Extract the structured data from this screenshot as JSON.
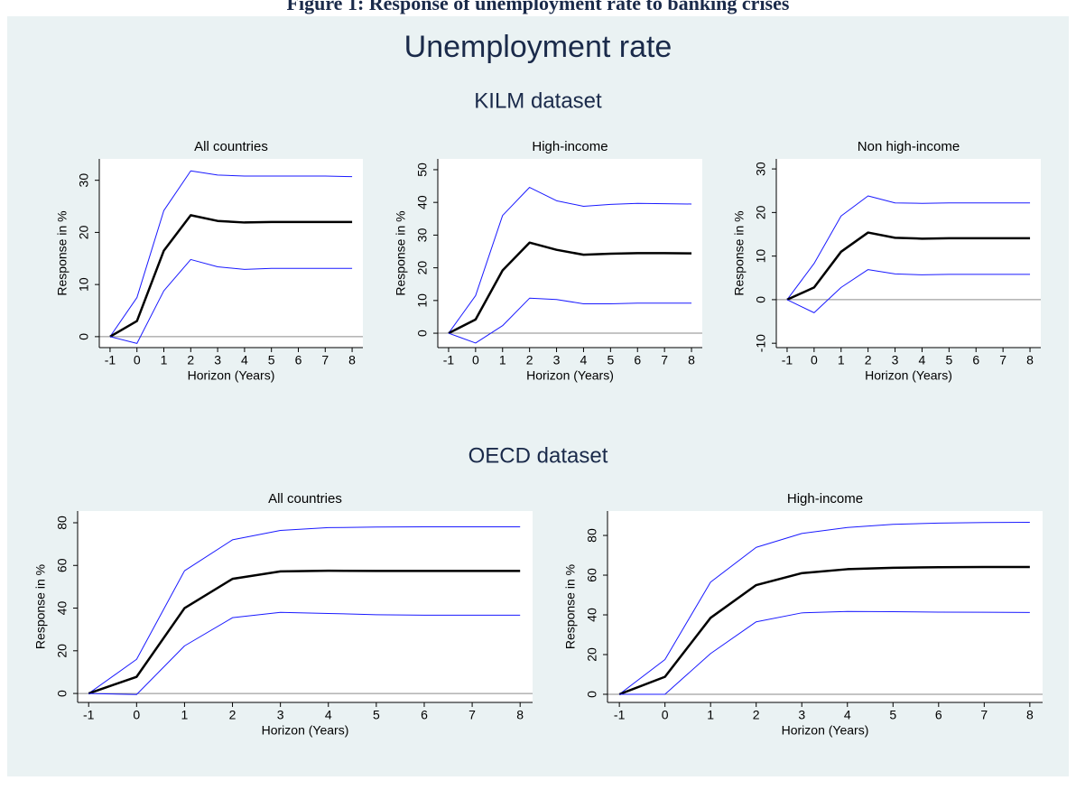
{
  "caption": "Figure 1: Response of unemployment rate to banking crises",
  "title": "Unemployment rate",
  "groups": [
    "KILM dataset",
    "OECD dataset"
  ],
  "chart_data": [
    {
      "type": "line",
      "group": 0,
      "title": "All countries",
      "xlabel": "Horizon (Years)",
      "ylabel": "Response in %",
      "x": [
        -1,
        0,
        1,
        2,
        3,
        4,
        5,
        6,
        7,
        8
      ],
      "xlim": [
        -1.4,
        8.4
      ],
      "xticks": [
        -1,
        0,
        1,
        2,
        3,
        4,
        5,
        6,
        7,
        8
      ],
      "ylim": [
        -2.1,
        34.1
      ],
      "yticks": [
        0,
        10,
        20,
        30
      ],
      "refline": 0,
      "series": [
        {
          "color": "#1a1aff",
          "values": [
            0,
            7.5,
            24.2,
            31.8,
            31,
            30.8,
            30.8,
            30.8,
            30.8,
            30.7
          ]
        },
        {
          "color": "#000000",
          "values": [
            0,
            3,
            16.5,
            23.3,
            22.2,
            21.9,
            22,
            22,
            22,
            22
          ]
        },
        {
          "color": "#1a1aff",
          "values": [
            0,
            -1.3,
            8.8,
            14.8,
            13.4,
            12.9,
            13.1,
            13.1,
            13.1,
            13.1
          ]
        }
      ]
    },
    {
      "type": "line",
      "group": 0,
      "title": "High-income",
      "xlabel": "Horizon (Years)",
      "ylabel": "Response in %",
      "x": [
        -1,
        0,
        1,
        2,
        3,
        4,
        5,
        6,
        7,
        8
      ],
      "xlim": [
        -1.4,
        8.4
      ],
      "xticks": [
        -1,
        0,
        1,
        2,
        3,
        4,
        5,
        6,
        7,
        8
      ],
      "ylim": [
        -4.4,
        53.3
      ],
      "yticks": [
        0,
        10,
        20,
        30,
        40,
        50
      ],
      "refline": 0,
      "series": [
        {
          "color": "#1a1aff",
          "values": [
            0,
            11.5,
            36,
            44.6,
            40.5,
            38.8,
            39.4,
            39.7,
            39.6,
            39.5
          ]
        },
        {
          "color": "#000000",
          "values": [
            0,
            4.2,
            19.2,
            27.7,
            25.5,
            24,
            24.3,
            24.5,
            24.5,
            24.4
          ]
        },
        {
          "color": "#1a1aff",
          "values": [
            0,
            -3,
            2.3,
            10.7,
            10.3,
            9,
            9,
            9.2,
            9.2,
            9.2
          ]
        }
      ]
    },
    {
      "type": "line",
      "group": 0,
      "title": "Non high-income",
      "xlabel": "Horizon (Years)",
      "ylabel": "Response in %",
      "x": [
        -1,
        0,
        1,
        2,
        3,
        4,
        5,
        6,
        7,
        8
      ],
      "xlim": [
        -1.4,
        8.4
      ],
      "xticks": [
        -1,
        0,
        1,
        2,
        3,
        4,
        5,
        6,
        7,
        8
      ],
      "ylim": [
        -11,
        32.3
      ],
      "yticks": [
        -10,
        0,
        10,
        20,
        30
      ],
      "refline": 0,
      "series": [
        {
          "color": "#1a1aff",
          "values": [
            0,
            8.3,
            19.2,
            23.8,
            22.2,
            22.1,
            22.2,
            22.2,
            22.2,
            22.2
          ]
        },
        {
          "color": "#000000",
          "values": [
            0,
            2.8,
            11,
            15.4,
            14.2,
            14,
            14.1,
            14.1,
            14.1,
            14.1
          ]
        },
        {
          "color": "#1a1aff",
          "values": [
            0,
            -3,
            2.8,
            6.9,
            5.9,
            5.7,
            5.8,
            5.8,
            5.8,
            5.8
          ]
        }
      ]
    },
    {
      "type": "line",
      "group": 1,
      "title": "All countries",
      "xlabel": "Horizon (Years)",
      "ylabel": "Response in %",
      "x": [
        -1,
        0,
        1,
        2,
        3,
        4,
        5,
        6,
        7,
        8
      ],
      "xlim": [
        -1.23,
        8.26
      ],
      "xticks": [
        -1,
        0,
        1,
        2,
        3,
        4,
        5,
        6,
        7,
        8
      ],
      "ylim": [
        -4.2,
        85.5
      ],
      "yticks": [
        0,
        20,
        40,
        60,
        80
      ],
      "refline": 0,
      "series": [
        {
          "color": "#1a1aff",
          "values": [
            0,
            16,
            57.5,
            72,
            76.4,
            77.7,
            78,
            78.1,
            78.1,
            78.1
          ]
        },
        {
          "color": "#000000",
          "values": [
            0,
            7.8,
            40,
            53.7,
            57.2,
            57.5,
            57.4,
            57.4,
            57.4,
            57.4
          ]
        },
        {
          "color": "#1a1aff",
          "values": [
            0,
            -0.5,
            22.3,
            35.5,
            38,
            37.5,
            36.9,
            36.7,
            36.7,
            36.7
          ]
        }
      ]
    },
    {
      "type": "line",
      "group": 1,
      "title": "High-income",
      "xlabel": "Horizon (Years)",
      "ylabel": "Response in %",
      "x": [
        -1,
        0,
        1,
        2,
        3,
        4,
        5,
        6,
        7,
        8
      ],
      "xlim": [
        -1.26,
        8.28
      ],
      "xticks": [
        -1,
        0,
        1,
        2,
        3,
        4,
        5,
        6,
        7,
        8
      ],
      "ylim": [
        -4.1,
        92.3
      ],
      "yticks": [
        0,
        20,
        40,
        60,
        80
      ],
      "refline": 0,
      "series": [
        {
          "color": "#1a1aff",
          "values": [
            0,
            17.5,
            56.5,
            74,
            81,
            84,
            85.6,
            86.2,
            86.5,
            86.6
          ]
        },
        {
          "color": "#000000",
          "values": [
            0,
            8.8,
            38.5,
            55,
            61,
            63,
            63.7,
            64,
            64.1,
            64.1
          ]
        },
        {
          "color": "#1a1aff",
          "values": [
            0,
            0,
            20.5,
            36.5,
            41,
            41.7,
            41.6,
            41.4,
            41.3,
            41.2
          ]
        }
      ]
    }
  ]
}
